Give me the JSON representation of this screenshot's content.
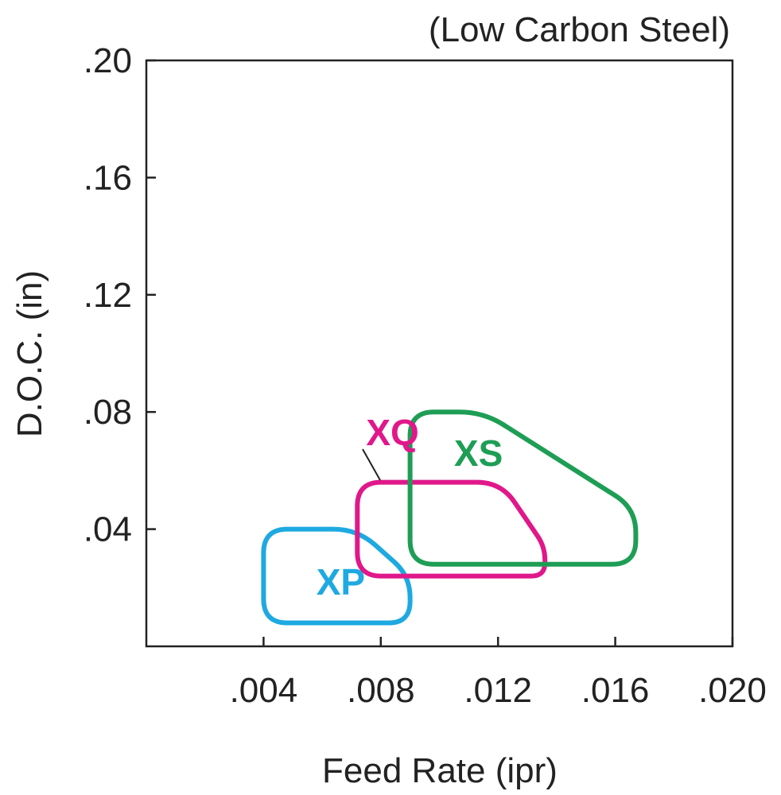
{
  "chart_data": {
    "type": "area",
    "subtitle": "(Low Carbon Steel)",
    "xlabel": "Feed Rate (ipr)",
    "ylabel": "D.O.C. (in)",
    "xlim": [
      0.0,
      0.02
    ],
    "ylim": [
      0.0,
      0.2
    ],
    "x_ticks": [
      {
        "value": 0.004,
        "label": ".004"
      },
      {
        "value": 0.008,
        "label": ".008"
      },
      {
        "value": 0.012,
        "label": ".012"
      },
      {
        "value": 0.016,
        "label": ".016"
      },
      {
        "value": 0.02,
        "label": ".020"
      }
    ],
    "y_ticks": [
      {
        "value": 0.04,
        "label": ".04"
      },
      {
        "value": 0.08,
        "label": ".08"
      },
      {
        "value": 0.12,
        "label": ".12"
      },
      {
        "value": 0.16,
        "label": ".16"
      },
      {
        "value": 0.2,
        "label": ".20"
      }
    ],
    "grid": false,
    "legend": "none",
    "series": [
      {
        "name": "XP",
        "color": "#1ea9e1",
        "outline": [
          [
            0.004,
            0.008
          ],
          [
            0.004,
            0.04
          ],
          [
            0.0072,
            0.04
          ],
          [
            0.009,
            0.024
          ],
          [
            0.009,
            0.008
          ]
        ],
        "label_at": [
          0.0058,
          0.022
        ]
      },
      {
        "name": "XQ",
        "color": "#e0188a",
        "outline": [
          [
            0.0072,
            0.024
          ],
          [
            0.0072,
            0.056
          ],
          [
            0.0121,
            0.056
          ],
          [
            0.0136,
            0.034
          ],
          [
            0.0136,
            0.024
          ]
        ],
        "label_at": [
          0.0075,
          0.073
        ]
      },
      {
        "name": "XS",
        "color": "#1e9e55",
        "outline": [
          [
            0.009,
            0.028
          ],
          [
            0.009,
            0.054
          ],
          [
            0.009,
            0.08
          ],
          [
            0.0115,
            0.08
          ],
          [
            0.0167,
            0.047
          ],
          [
            0.0167,
            0.028
          ]
        ],
        "label_at": [
          0.0105,
          0.066
        ]
      }
    ]
  }
}
